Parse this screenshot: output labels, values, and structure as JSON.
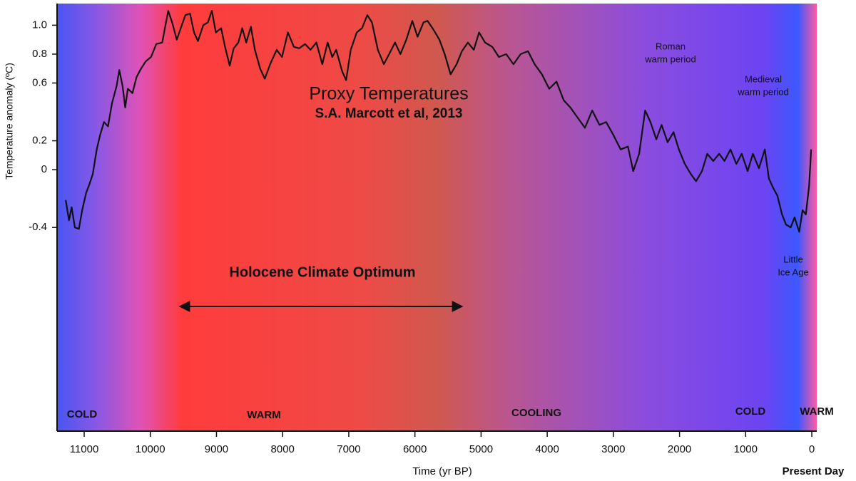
{
  "chart_data": {
    "type": "line",
    "y_label": "Temperature anomaly (ºC)",
    "x_label": "Time (yr BP)",
    "x_end_label": "Present Day",
    "annotations": [
      [
        "Proxy Temperatures"
      ],
      [
        "S.A. Marcott et al, 2013"
      ],
      [
        "Holocene Climate Optimum"
      ],
      [
        "Roman",
        "warm period"
      ],
      [
        "Medieval",
        "warm period"
      ],
      [
        "Little",
        "Ice Age"
      ],
      [
        "COLD"
      ],
      [
        "WARM"
      ],
      [
        "COOLING"
      ],
      [
        "COLD"
      ],
      [
        "WARM"
      ]
    ],
    "xlim": [
      11410,
      -75
    ],
    "xticks": [
      11000,
      10000,
      9000,
      8000,
      7000,
      6000,
      5000,
      4000,
      3000,
      2000,
      1000,
      0
    ],
    "ylim": [
      1.15,
      -1.81
    ],
    "yticks": [
      {
        "value": 1,
        "label": "1.0"
      },
      0.8,
      0.6,
      0.2,
      0,
      -0.4
    ],
    "series": [
      {
        "color": "#111111",
        "x": [
          11280,
          11230,
          11190,
          11140,
          11080,
          11030,
          10970,
          10920,
          10870,
          10810,
          10760,
          10700,
          10640,
          10580,
          10510,
          10470,
          10420,
          10380,
          10340,
          10270,
          10210,
          10140,
          10070,
          9990,
          9910,
          9820,
          9730,
          9670,
          9600,
          9540,
          9470,
          9400,
          9340,
          9280,
          9200,
          9130,
          9070,
          9010,
          8930,
          8870,
          8800,
          8740,
          8670,
          8610,
          8550,
          8480,
          8420,
          8340,
          8270,
          8180,
          8090,
          8010,
          7920,
          7830,
          7750,
          7660,
          7580,
          7490,
          7400,
          7320,
          7250,
          7190,
          7100,
          7040,
          6970,
          6880,
          6800,
          6720,
          6650,
          6560,
          6470,
          6390,
          6300,
          6220,
          6130,
          6040,
          5960,
          5870,
          5810,
          5720,
          5630,
          5550,
          5460,
          5370,
          5290,
          5200,
          5110,
          5030,
          4940,
          4830,
          4730,
          4620,
          4510,
          4400,
          4290,
          4190,
          4080,
          3970,
          3860,
          3750,
          3650,
          3540,
          3430,
          3320,
          3210,
          3110,
          3000,
          2890,
          2780,
          2700,
          2610,
          2520,
          2440,
          2350,
          2270,
          2180,
          2090,
          2010,
          1920,
          1830,
          1750,
          1660,
          1580,
          1490,
          1400,
          1320,
          1230,
          1140,
          1060,
          970,
          890,
          800,
          710,
          650,
          580,
          520,
          450,
          390,
          320,
          260,
          190,
          140,
          90,
          40,
          10
        ],
        "values": [
          -0.21,
          -0.35,
          -0.26,
          -0.4,
          -0.41,
          -0.28,
          -0.16,
          -0.1,
          -0.03,
          0.14,
          0.24,
          0.33,
          0.3,
          0.46,
          0.58,
          0.69,
          0.58,
          0.43,
          0.56,
          0.53,
          0.64,
          0.7,
          0.75,
          0.78,
          0.87,
          0.88,
          1.1,
          1.02,
          0.9,
          0.98,
          1.07,
          1.08,
          0.95,
          0.89,
          1,
          1.02,
          1.1,
          0.95,
          0.98,
          0.85,
          0.72,
          0.84,
          0.88,
          0.98,
          0.88,
          0.99,
          0.83,
          0.7,
          0.63,
          0.74,
          0.83,
          0.78,
          0.95,
          0.85,
          0.84,
          0.87,
          0.83,
          0.88,
          0.73,
          0.88,
          0.78,
          0.83,
          0.68,
          0.62,
          0.83,
          0.95,
          0.98,
          1.07,
          1.02,
          0.83,
          0.73,
          0.8,
          0.88,
          0.8,
          0.9,
          1.03,
          0.92,
          1.02,
          1.03,
          0.97,
          0.9,
          0.8,
          0.66,
          0.73,
          0.82,
          0.88,
          0.83,
          0.95,
          0.88,
          0.85,
          0.78,
          0.8,
          0.73,
          0.8,
          0.82,
          0.73,
          0.66,
          0.56,
          0.61,
          0.48,
          0.43,
          0.36,
          0.29,
          0.41,
          0.31,
          0.33,
          0.24,
          0.14,
          0.16,
          -0.01,
          0.11,
          0.41,
          0.33,
          0.21,
          0.31,
          0.19,
          0.26,
          0.14,
          0.04,
          -0.03,
          -0.08,
          -0.01,
          0.11,
          0.06,
          0.11,
          0.06,
          0.14,
          0.04,
          0.11,
          -0.01,
          0.11,
          0.01,
          0.14,
          -0.06,
          -0.13,
          -0.18,
          -0.31,
          -0.38,
          -0.4,
          -0.33,
          -0.43,
          -0.28,
          -0.31,
          -0.11,
          0.14
        ]
      }
    ]
  }
}
